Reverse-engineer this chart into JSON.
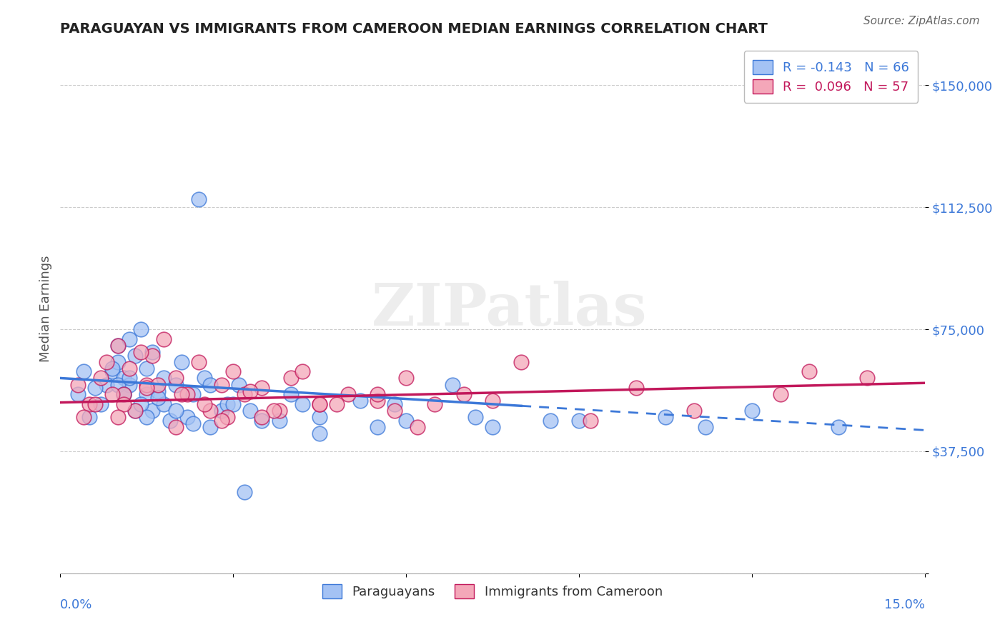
{
  "title": "PARAGUAYAN VS IMMIGRANTS FROM CAMEROON MEDIAN EARNINGS CORRELATION CHART",
  "source": "Source: ZipAtlas.com",
  "ylabel": "Median Earnings",
  "xlim": [
    0.0,
    15.0
  ],
  "ylim": [
    0,
    162500
  ],
  "yticks": [
    0,
    37500,
    75000,
    112500,
    150000
  ],
  "ytick_labels": [
    "",
    "$37,500",
    "$75,000",
    "$112,500",
    "$150,000"
  ],
  "blue_color": "#a4c2f4",
  "pink_color": "#f4a7b9",
  "blue_line_color": "#3c78d8",
  "pink_line_color": "#c2185b",
  "axis_color": "#3c78d8",
  "blue_R": "-0.143",
  "blue_N": "66",
  "pink_R": "0.096",
  "pink_N": "57",
  "legend_label_blue": "Paraguayans",
  "legend_label_pink": "Immigrants from Cameroon",
  "blue_trend_y0": 60000,
  "blue_trend_y1": 44000,
  "blue_solid_x_end": 8.0,
  "pink_trend_y0": 52500,
  "pink_trend_y1": 58500,
  "blue_scatter_x": [
    0.3,
    0.5,
    0.7,
    0.8,
    0.9,
    1.0,
    1.0,
    1.1,
    1.1,
    1.2,
    1.2,
    1.3,
    1.3,
    1.4,
    1.5,
    1.5,
    1.6,
    1.6,
    1.7,
    1.8,
    1.8,
    1.9,
    2.0,
    2.1,
    2.2,
    2.3,
    2.5,
    2.6,
    2.8,
    2.9,
    3.1,
    3.3,
    3.5,
    4.0,
    4.2,
    4.5,
    5.2,
    5.5,
    6.0,
    6.8,
    7.5,
    9.0,
    10.5,
    12.0,
    0.4,
    0.6,
    0.9,
    1.0,
    1.1,
    1.2,
    1.4,
    1.5,
    1.7,
    2.0,
    2.3,
    2.6,
    3.0,
    3.8,
    4.5,
    5.8,
    7.2,
    8.5,
    11.2,
    13.5,
    3.2,
    2.4
  ],
  "blue_scatter_y": [
    55000,
    48000,
    52000,
    58000,
    62000,
    65000,
    70000,
    60000,
    55000,
    72000,
    58000,
    67000,
    50000,
    75000,
    63000,
    55000,
    68000,
    50000,
    56000,
    60000,
    52000,
    47000,
    58000,
    65000,
    48000,
    55000,
    60000,
    45000,
    50000,
    52000,
    58000,
    50000,
    47000,
    55000,
    52000,
    48000,
    53000,
    45000,
    47000,
    58000,
    45000,
    47000,
    48000,
    50000,
    62000,
    57000,
    63000,
    58000,
    55000,
    60000,
    52000,
    48000,
    54000,
    50000,
    46000,
    58000,
    52000,
    47000,
    43000,
    52000,
    48000,
    47000,
    45000,
    45000,
    25000,
    115000
  ],
  "pink_scatter_x": [
    0.3,
    0.5,
    0.8,
    1.0,
    1.1,
    1.2,
    1.3,
    1.5,
    1.6,
    1.8,
    2.0,
    2.2,
    2.4,
    2.6,
    2.8,
    3.0,
    3.2,
    3.5,
    3.8,
    4.0,
    4.5,
    5.0,
    5.5,
    6.0,
    6.5,
    7.0,
    8.0,
    10.0,
    12.5,
    14.0,
    0.4,
    0.7,
    0.9,
    1.1,
    1.4,
    1.7,
    2.1,
    2.5,
    2.9,
    3.3,
    3.7,
    4.2,
    4.8,
    5.5,
    6.2,
    7.5,
    9.2,
    11.0,
    13.0,
    0.6,
    1.0,
    1.5,
    2.0,
    2.8,
    3.5,
    4.5,
    5.8
  ],
  "pink_scatter_y": [
    58000,
    52000,
    65000,
    70000,
    55000,
    63000,
    50000,
    58000,
    67000,
    72000,
    60000,
    55000,
    65000,
    50000,
    58000,
    62000,
    55000,
    57000,
    50000,
    60000,
    52000,
    55000,
    53000,
    60000,
    52000,
    55000,
    65000,
    57000,
    55000,
    60000,
    48000,
    60000,
    55000,
    52000,
    68000,
    58000,
    55000,
    52000,
    48000,
    56000,
    50000,
    62000,
    52000,
    55000,
    45000,
    53000,
    47000,
    50000,
    62000,
    52000,
    48000,
    57000,
    45000,
    47000,
    48000,
    52000,
    50000
  ]
}
